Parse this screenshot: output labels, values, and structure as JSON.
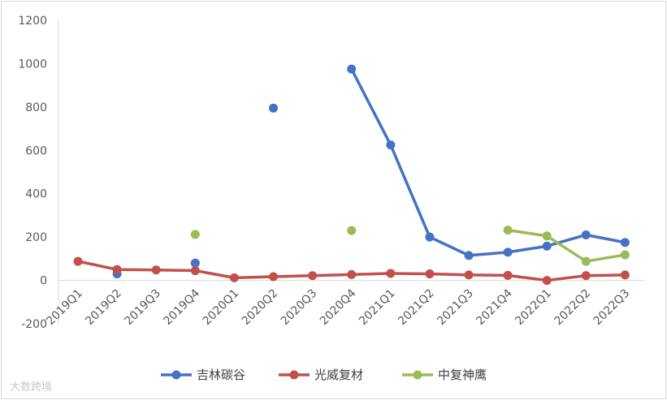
{
  "chart_data": {
    "type": "line",
    "categories": [
      "2019Q1",
      "2019Q2",
      "2019Q3",
      "2019Q4",
      "2020Q1",
      "2020Q2",
      "2020Q3",
      "2020Q4",
      "2021Q1",
      "2021Q2",
      "2021Q3",
      "2021Q4",
      "2022Q1",
      "2022Q2",
      "2022Q3"
    ],
    "series": [
      {
        "name": "吉林碳谷",
        "color": "#4472c4",
        "values": [
          null,
          30,
          null,
          80,
          null,
          795,
          null,
          975,
          625,
          200,
          115,
          130,
          158,
          210,
          175
        ]
      },
      {
        "name": "光威复材",
        "color": "#c0504d",
        "values": [
          88,
          50,
          48,
          45,
          12,
          17,
          22,
          27,
          32,
          30,
          25,
          23,
          0,
          22,
          25
        ]
      },
      {
        "name": "中复神鹰",
        "color": "#9bbb59",
        "values": [
          null,
          null,
          null,
          212,
          null,
          null,
          null,
          230,
          null,
          null,
          null,
          232,
          205,
          88,
          118
        ]
      }
    ],
    "yticks": [
      "1200",
      "1000",
      "800",
      "600",
      "400",
      "200",
      "0",
      "-200"
    ],
    "ylim": [
      -200,
      1200
    ],
    "grid": false,
    "legend": "bottom"
  },
  "watermark": "大数跨境"
}
